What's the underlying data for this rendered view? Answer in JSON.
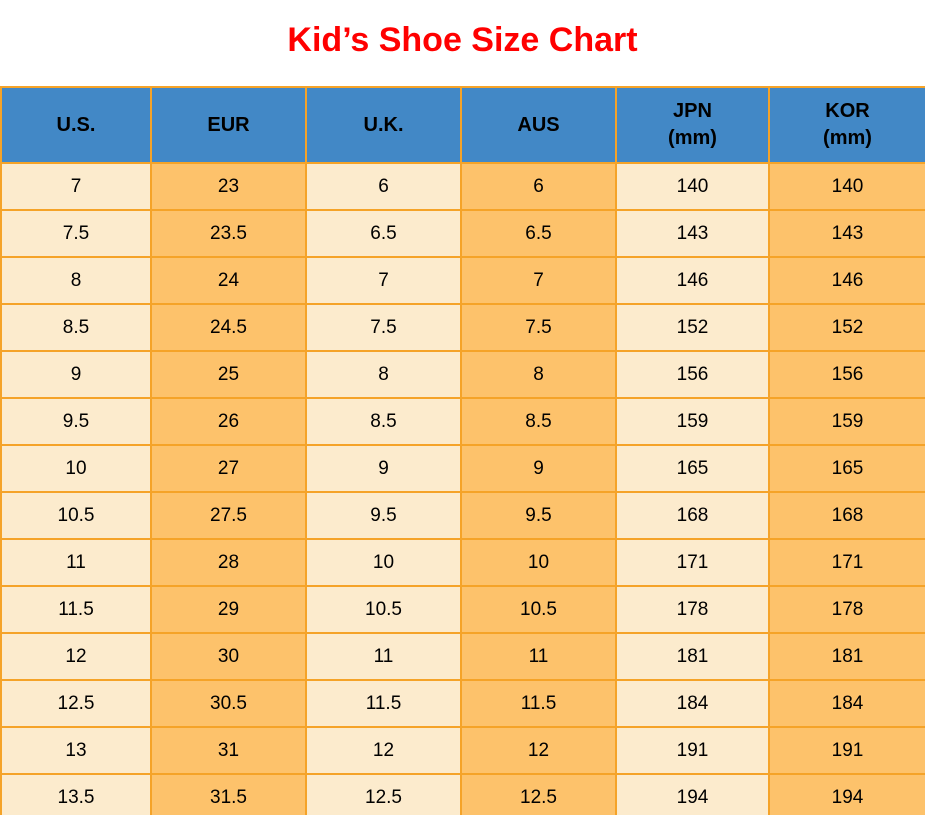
{
  "title": "Kid’s Shoe Size Chart",
  "colors": {
    "title_red": "#ff0000",
    "header_blue": "#4288c6",
    "border_orange": "#f5a328",
    "cell_cream": "#fcebcd",
    "cell_orange": "#fdc26b"
  },
  "chart_data": {
    "type": "table",
    "title": "Kid’s Shoe Size Chart",
    "columns": [
      {
        "label": "U.S.",
        "sub": ""
      },
      {
        "label": "EUR",
        "sub": ""
      },
      {
        "label": "U.K.",
        "sub": ""
      },
      {
        "label": "AUS",
        "sub": ""
      },
      {
        "label": "JPN",
        "sub": "(mm)"
      },
      {
        "label": "KOR",
        "sub": "(mm)"
      }
    ],
    "rows": [
      [
        "7",
        "23",
        "6",
        "6",
        "140",
        "140"
      ],
      [
        "7.5",
        "23.5",
        "6.5",
        "6.5",
        "143",
        "143"
      ],
      [
        "8",
        "24",
        "7",
        "7",
        "146",
        "146"
      ],
      [
        "8.5",
        "24.5",
        "7.5",
        "7.5",
        "152",
        "152"
      ],
      [
        "9",
        "25",
        "8",
        "8",
        "156",
        "156"
      ],
      [
        "9.5",
        "26",
        "8.5",
        "8.5",
        "159",
        "159"
      ],
      [
        "10",
        "27",
        "9",
        "9",
        "165",
        "165"
      ],
      [
        "10.5",
        "27.5",
        "9.5",
        "9.5",
        "168",
        "168"
      ],
      [
        "11",
        "28",
        "10",
        "10",
        "171",
        "171"
      ],
      [
        "11.5",
        "29",
        "10.5",
        "10.5",
        "178",
        "178"
      ],
      [
        "12",
        "30",
        "11",
        "11",
        "181",
        "181"
      ],
      [
        "12.5",
        "30.5",
        "11.5",
        "11.5",
        "184",
        "184"
      ],
      [
        "13",
        "31",
        "12",
        "12",
        "191",
        "191"
      ],
      [
        "13.5",
        "31.5",
        "12.5",
        "12.5",
        "194",
        "194"
      ]
    ]
  }
}
